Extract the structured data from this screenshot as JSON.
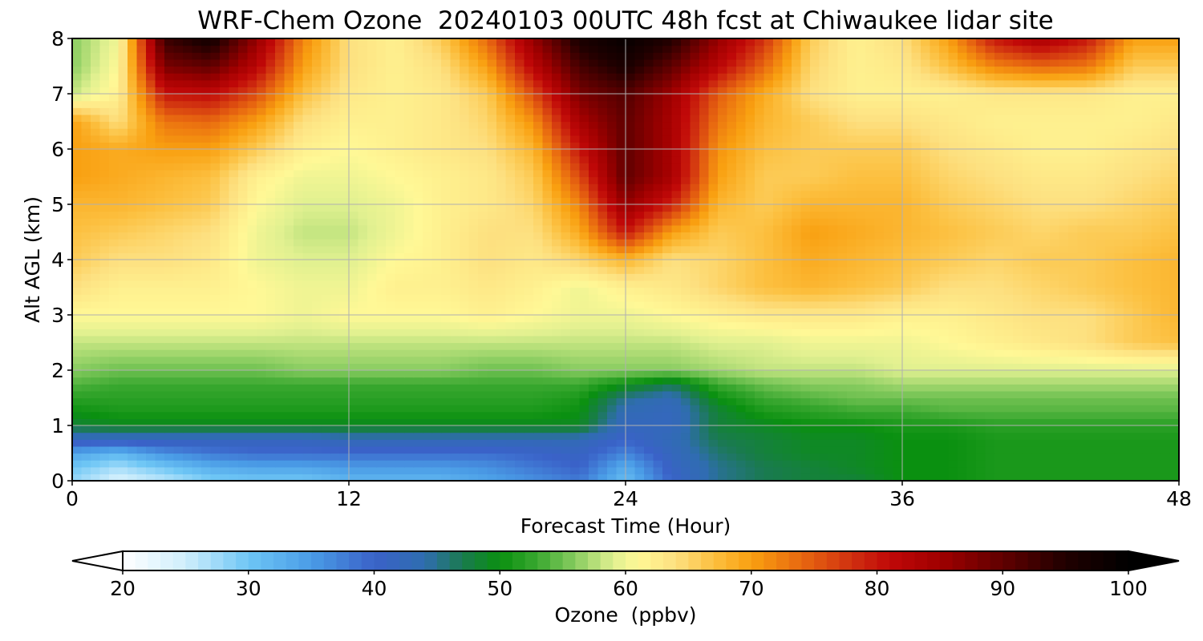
{
  "chart_data": {
    "type": "heatmap",
    "title": "WRF-Chem Ozone  20240103 00UTC 48h fcst at Chiwaukee lidar site",
    "xlabel": "Forecast Time (Hour)",
    "ylabel": "Alt AGL (km)",
    "xlim": [
      0,
      48
    ],
    "ylim": [
      0,
      8
    ],
    "xticks": [
      0,
      12,
      24,
      36,
      48
    ],
    "yticks": [
      0,
      1,
      2,
      3,
      4,
      5,
      6,
      7,
      8
    ],
    "grid": true,
    "colorbar": {
      "label": "Ozone  (ppbv)",
      "orientation": "horizontal",
      "placement": "bottom",
      "range": [
        20,
        100
      ],
      "ticks": [
        20,
        30,
        40,
        50,
        60,
        70,
        80,
        90,
        100
      ],
      "extend": "both",
      "stops": [
        {
          "value": 20,
          "color": "#ffffff"
        },
        {
          "value": 25,
          "color": "#cfeefc"
        },
        {
          "value": 30,
          "color": "#6ec6f5"
        },
        {
          "value": 35,
          "color": "#4a9ce6"
        },
        {
          "value": 40,
          "color": "#3a62c8"
        },
        {
          "value": 44,
          "color": "#2f6db0"
        },
        {
          "value": 47,
          "color": "#1a7a50"
        },
        {
          "value": 50,
          "color": "#0a9010"
        },
        {
          "value": 53,
          "color": "#3aa830"
        },
        {
          "value": 56,
          "color": "#88cc60"
        },
        {
          "value": 59,
          "color": "#e0f090"
        },
        {
          "value": 61,
          "color": "#fff896"
        },
        {
          "value": 64,
          "color": "#fde080"
        },
        {
          "value": 67,
          "color": "#fcc040"
        },
        {
          "value": 70,
          "color": "#f9a010"
        },
        {
          "value": 74,
          "color": "#e86810"
        },
        {
          "value": 78,
          "color": "#d03010"
        },
        {
          "value": 81,
          "color": "#c00808"
        },
        {
          "value": 85,
          "color": "#a00000"
        },
        {
          "value": 90,
          "color": "#600000"
        },
        {
          "value": 95,
          "color": "#200000"
        },
        {
          "value": 100,
          "color": "#000000"
        }
      ]
    },
    "times": [
      0,
      2,
      4,
      6,
      8,
      10,
      12,
      14,
      16,
      18,
      20,
      22,
      24,
      26,
      28,
      30,
      32,
      34,
      36,
      38,
      40,
      42,
      44,
      46,
      48
    ],
    "altitudes": [
      0,
      0.25,
      0.5,
      0.75,
      1,
      1.25,
      1.5,
      1.75,
      2,
      2.5,
      3,
      3.5,
      4,
      4.5,
      5,
      5.5,
      6,
      6.5,
      7,
      7.5,
      8
    ],
    "values": [
      [
        28,
        24,
        26,
        29,
        30,
        30,
        32,
        32,
        32,
        34,
        36,
        38,
        31,
        40,
        45,
        47,
        48,
        48,
        50,
        50,
        51,
        51,
        51,
        51,
        51
      ],
      [
        30,
        27,
        30,
        33,
        34,
        34,
        35,
        35,
        35,
        36,
        38,
        40,
        33,
        41,
        45,
        47,
        48,
        49,
        50,
        50,
        51,
        51,
        51,
        51,
        51
      ],
      [
        34,
        32,
        36,
        38,
        39,
        39,
        39,
        39,
        39,
        39,
        40,
        41,
        37,
        42,
        46,
        48,
        49,
        49,
        50,
        50,
        51,
        51,
        51,
        51,
        51
      ],
      [
        42,
        42,
        42,
        42,
        42,
        42,
        43,
        43,
        43,
        43,
        43,
        43,
        40,
        43,
        47,
        48,
        49,
        49,
        50,
        50,
        51,
        51,
        51,
        51,
        51
      ],
      [
        48,
        49,
        49,
        49,
        49,
        49,
        49,
        49,
        49,
        49,
        49,
        49,
        42,
        42,
        48,
        49,
        50,
        50,
        51,
        51,
        52,
        52,
        52,
        52,
        52
      ],
      [
        50,
        51,
        51,
        51,
        51,
        51,
        51,
        51,
        51,
        51,
        51,
        50,
        43,
        42,
        48,
        51,
        52,
        53,
        53,
        54,
        54,
        54,
        54,
        54,
        54
      ],
      [
        52,
        52,
        52,
        52,
        52,
        52,
        52,
        52,
        52,
        52,
        52,
        51,
        45,
        43,
        50,
        53,
        54,
        55,
        55,
        55,
        55,
        55,
        55,
        55,
        55
      ],
      [
        54,
        53,
        53,
        53,
        53,
        53,
        53,
        53,
        53,
        53,
        53,
        53,
        50,
        47,
        53,
        55,
        56,
        56,
        57,
        57,
        57,
        57,
        57,
        57,
        57
      ],
      [
        56,
        55,
        55,
        55,
        55,
        56,
        56,
        56,
        56,
        55,
        55,
        56,
        56,
        56,
        57,
        58,
        58,
        58,
        59,
        59,
        59,
        59,
        59,
        59,
        59
      ],
      [
        58,
        58,
        58,
        58,
        58,
        58,
        58,
        58,
        58,
        58,
        58,
        58,
        58,
        58,
        59,
        59,
        60,
        60,
        60,
        61,
        62,
        63,
        64,
        66,
        67
      ],
      [
        61,
        61,
        61,
        61,
        61,
        60,
        61,
        61,
        61,
        62,
        61,
        60,
        60,
        61,
        62,
        63,
        63,
        63,
        62,
        62,
        63,
        64,
        64,
        66,
        68
      ],
      [
        64,
        62,
        62,
        62,
        61,
        60,
        60,
        62,
        62,
        63,
        62,
        60,
        62,
        63,
        65,
        67,
        68,
        67,
        66,
        64,
        64,
        65,
        66,
        67,
        68
      ],
      [
        66,
        64,
        64,
        63,
        60,
        59,
        59,
        61,
        62,
        64,
        63,
        65,
        68,
        64,
        65,
        67,
        69,
        68,
        67,
        66,
        65,
        66,
        66,
        67,
        68
      ],
      [
        67,
        66,
        65,
        64,
        60,
        58,
        58,
        60,
        62,
        64,
        64,
        69,
        80,
        70,
        66,
        67,
        70,
        69,
        68,
        67,
        66,
        65,
        66,
        66,
        67
      ],
      [
        68,
        68,
        67,
        66,
        61,
        59,
        59,
        60,
        62,
        63,
        65,
        72,
        86,
        79,
        68,
        66,
        68,
        68,
        68,
        66,
        65,
        64,
        64,
        65,
        66
      ],
      [
        70,
        69,
        68,
        67,
        62,
        60,
        60,
        61,
        62,
        63,
        66,
        76,
        90,
        84,
        70,
        66,
        66,
        67,
        67,
        65,
        64,
        63,
        63,
        64,
        65
      ],
      [
        70,
        69,
        70,
        70,
        66,
        62,
        61,
        62,
        63,
        64,
        68,
        80,
        90,
        84,
        71,
        67,
        66,
        66,
        66,
        64,
        63,
        62,
        62,
        63,
        64
      ],
      [
        70,
        64,
        73,
        74,
        70,
        64,
        62,
        62,
        63,
        65,
        71,
        84,
        90,
        84,
        73,
        68,
        66,
        64,
        64,
        63,
        62,
        62,
        62,
        62,
        63
      ],
      [
        58,
        62,
        80,
        81,
        76,
        67,
        63,
        62,
        63,
        66,
        76,
        88,
        91,
        85,
        75,
        69,
        64,
        62,
        62,
        62,
        63,
        63,
        63,
        62,
        62
      ],
      [
        56,
        61,
        88,
        90,
        82,
        70,
        64,
        62,
        64,
        70,
        82,
        92,
        96,
        90,
        82,
        74,
        65,
        62,
        63,
        67,
        72,
        74,
        73,
        66,
        66
      ],
      [
        56,
        60,
        93,
        97,
        86,
        72,
        64,
        62,
        66,
        74,
        86,
        96,
        99,
        95,
        86,
        78,
        66,
        62,
        64,
        70,
        80,
        84,
        80,
        70,
        70
      ]
    ]
  }
}
